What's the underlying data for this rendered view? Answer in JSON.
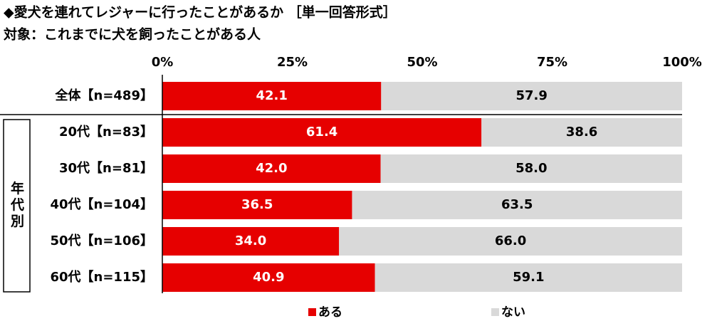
{
  "chart_data": {
    "type": "bar",
    "horizontal": true,
    "stacked": true,
    "title": "◆愛犬を連れてレジャーに行ったことがあるか ［単一回答形式］",
    "subtitle": "対象：これまでに犬を飼ったことがある人",
    "group_label": "年代別",
    "categories": [
      "全体【n=489】",
      "20代【n=83】",
      "30代【n=81】",
      "40代【n=104】",
      "50代【n=106】",
      "60代【n=115】"
    ],
    "series": [
      {
        "name": "ある",
        "color": "#e60000",
        "values": [
          42.1,
          61.4,
          42.0,
          36.5,
          34.0,
          40.9
        ],
        "value_labels": [
          "42.1",
          "61.4",
          "42.0",
          "36.5",
          "34.0",
          "40.9"
        ]
      },
      {
        "name": "ない",
        "color": "#d9d9d9",
        "values": [
          57.9,
          38.6,
          58.0,
          63.5,
          66.0,
          59.1
        ],
        "value_labels": [
          "57.9",
          "38.6",
          "58.0",
          "63.5",
          "66.0",
          "59.1"
        ]
      }
    ],
    "xlim": [
      0,
      100
    ],
    "xticks": [
      {
        "value": 0,
        "label": "0%"
      },
      {
        "value": 25,
        "label": "25%"
      },
      {
        "value": 50,
        "label": "50%"
      },
      {
        "value": 75,
        "label": "75%"
      },
      {
        "value": 100,
        "label": "100%"
      }
    ]
  }
}
